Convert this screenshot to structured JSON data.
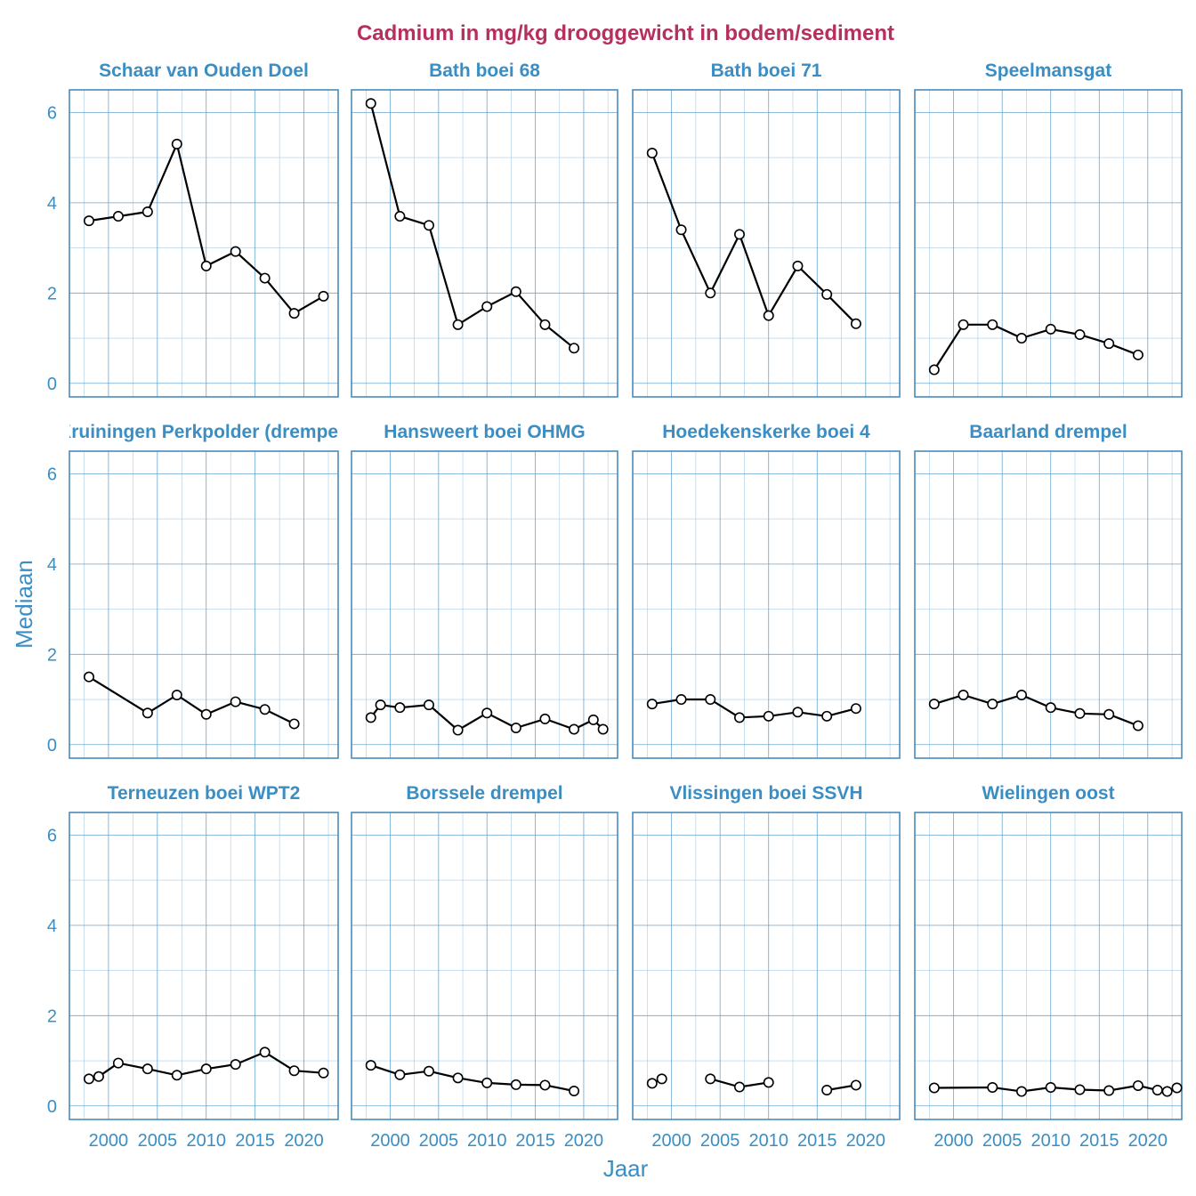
{
  "chart_data": {
    "type": "line",
    "title": "Cadmium in mg/kg drooggewicht in bodem/sediment",
    "xlabel": "Jaar",
    "ylabel": "Mediaan",
    "xlim": [
      1996,
      2023.5
    ],
    "ylim": [
      -0.3,
      6.5
    ],
    "x_ticks": [
      2000,
      2005,
      2010,
      2015,
      2020
    ],
    "y_ticks": [
      0,
      2,
      4,
      6
    ],
    "colors": {
      "title": "#b5305e",
      "text": "#3a8ec4",
      "frame": "#4a8ab8",
      "line": "#000000"
    },
    "panels": [
      {
        "name": "Schaar van Ouden Doel",
        "segments": [
          [
            [
              1998,
              3.6
            ],
            [
              2001,
              3.7
            ],
            [
              2004,
              3.8
            ],
            [
              2007,
              5.3
            ],
            [
              2010,
              2.6
            ],
            [
              2013,
              2.92
            ],
            [
              2016,
              2.33
            ],
            [
              2019,
              1.55
            ],
            [
              2022,
              1.93
            ]
          ]
        ]
      },
      {
        "name": "Bath boei 68",
        "segments": [
          [
            [
              1998,
              6.2
            ],
            [
              2001,
              3.7
            ],
            [
              2004,
              3.5
            ],
            [
              2007,
              1.3
            ],
            [
              2010,
              1.7
            ],
            [
              2013,
              2.03
            ],
            [
              2016,
              1.3
            ],
            [
              2019,
              0.78
            ]
          ]
        ]
      },
      {
        "name": "Bath boei 71",
        "segments": [
          [
            [
              1998,
              5.1
            ],
            [
              2001,
              3.4
            ],
            [
              2004,
              2.0
            ],
            [
              2007,
              3.3
            ],
            [
              2010,
              1.5
            ],
            [
              2013,
              2.6
            ],
            [
              2016,
              1.97
            ],
            [
              2019,
              1.32
            ]
          ]
        ]
      },
      {
        "name": "Speelmansgat",
        "segments": [
          [
            [
              1998,
              0.3
            ],
            [
              2001,
              1.3
            ],
            [
              2004,
              1.3
            ],
            [
              2007,
              1.0
            ],
            [
              2010,
              1.2
            ],
            [
              2013,
              1.08
            ],
            [
              2016,
              0.88
            ],
            [
              2019,
              0.63
            ]
          ]
        ]
      },
      {
        "name": "Kruiningen Perkpolder (drempel)",
        "segments": [
          [
            [
              1998,
              1.5
            ],
            [
              2004,
              0.7
            ],
            [
              2007,
              1.1
            ],
            [
              2010,
              0.67
            ],
            [
              2013,
              0.95
            ],
            [
              2016,
              0.78
            ],
            [
              2019,
              0.46
            ]
          ]
        ]
      },
      {
        "name": "Hansweert boei OHMG",
        "segments": [
          [
            [
              1998,
              0.6
            ],
            [
              1999,
              0.88
            ],
            [
              2001,
              0.82
            ],
            [
              2004,
              0.88
            ],
            [
              2007,
              0.32
            ],
            [
              2010,
              0.7
            ],
            [
              2013,
              0.37
            ],
            [
              2016,
              0.57
            ],
            [
              2019,
              0.34
            ],
            [
              2021,
              0.55
            ],
            [
              2022,
              0.34
            ]
          ]
        ]
      },
      {
        "name": "Hoedekenskerke boei 4",
        "segments": [
          [
            [
              1998,
              0.9
            ],
            [
              2001,
              1.0
            ],
            [
              2004,
              1.0
            ],
            [
              2007,
              0.6
            ],
            [
              2010,
              0.63
            ],
            [
              2013,
              0.72
            ],
            [
              2016,
              0.63
            ],
            [
              2019,
              0.8
            ]
          ]
        ]
      },
      {
        "name": "Baarland drempel",
        "segments": [
          [
            [
              1998,
              0.9
            ],
            [
              2001,
              1.1
            ],
            [
              2004,
              0.9
            ],
            [
              2007,
              1.1
            ],
            [
              2010,
              0.82
            ],
            [
              2013,
              0.69
            ],
            [
              2016,
              0.67
            ],
            [
              2019,
              0.42
            ]
          ]
        ]
      },
      {
        "name": "Terneuzen boei WPT2",
        "segments": [
          [
            [
              1998,
              0.6
            ],
            [
              1999,
              0.65
            ],
            [
              2001,
              0.95
            ],
            [
              2004,
              0.82
            ],
            [
              2007,
              0.68
            ],
            [
              2010,
              0.82
            ],
            [
              2013,
              0.92
            ],
            [
              2016,
              1.19
            ],
            [
              2019,
              0.78
            ],
            [
              2022,
              0.73
            ]
          ]
        ]
      },
      {
        "name": "Borssele drempel",
        "segments": [
          [
            [
              1998,
              0.9
            ],
            [
              2001,
              0.69
            ],
            [
              2004,
              0.77
            ],
            [
              2007,
              0.62
            ],
            [
              2010,
              0.51
            ],
            [
              2013,
              0.47
            ],
            [
              2016,
              0.46
            ],
            [
              2019,
              0.33
            ]
          ]
        ]
      },
      {
        "name": "Vlissingen boei SSVH",
        "segments": [
          [
            [
              1998,
              0.5
            ],
            [
              1999,
              0.6
            ]
          ],
          [
            [
              2004,
              0.6
            ],
            [
              2007,
              0.42
            ],
            [
              2010,
              0.52
            ]
          ],
          [
            [
              2016,
              0.35
            ],
            [
              2019,
              0.46
            ]
          ]
        ]
      },
      {
        "name": "Wielingen oost",
        "segments": [
          [
            [
              1998,
              0.4
            ],
            [
              2004,
              0.41
            ],
            [
              2007,
              0.32
            ],
            [
              2010,
              0.41
            ],
            [
              2013,
              0.36
            ],
            [
              2016,
              0.34
            ],
            [
              2019,
              0.45
            ],
            [
              2021,
              0.35
            ],
            [
              2022,
              0.32
            ],
            [
              2023,
              0.4
            ]
          ]
        ]
      }
    ]
  }
}
